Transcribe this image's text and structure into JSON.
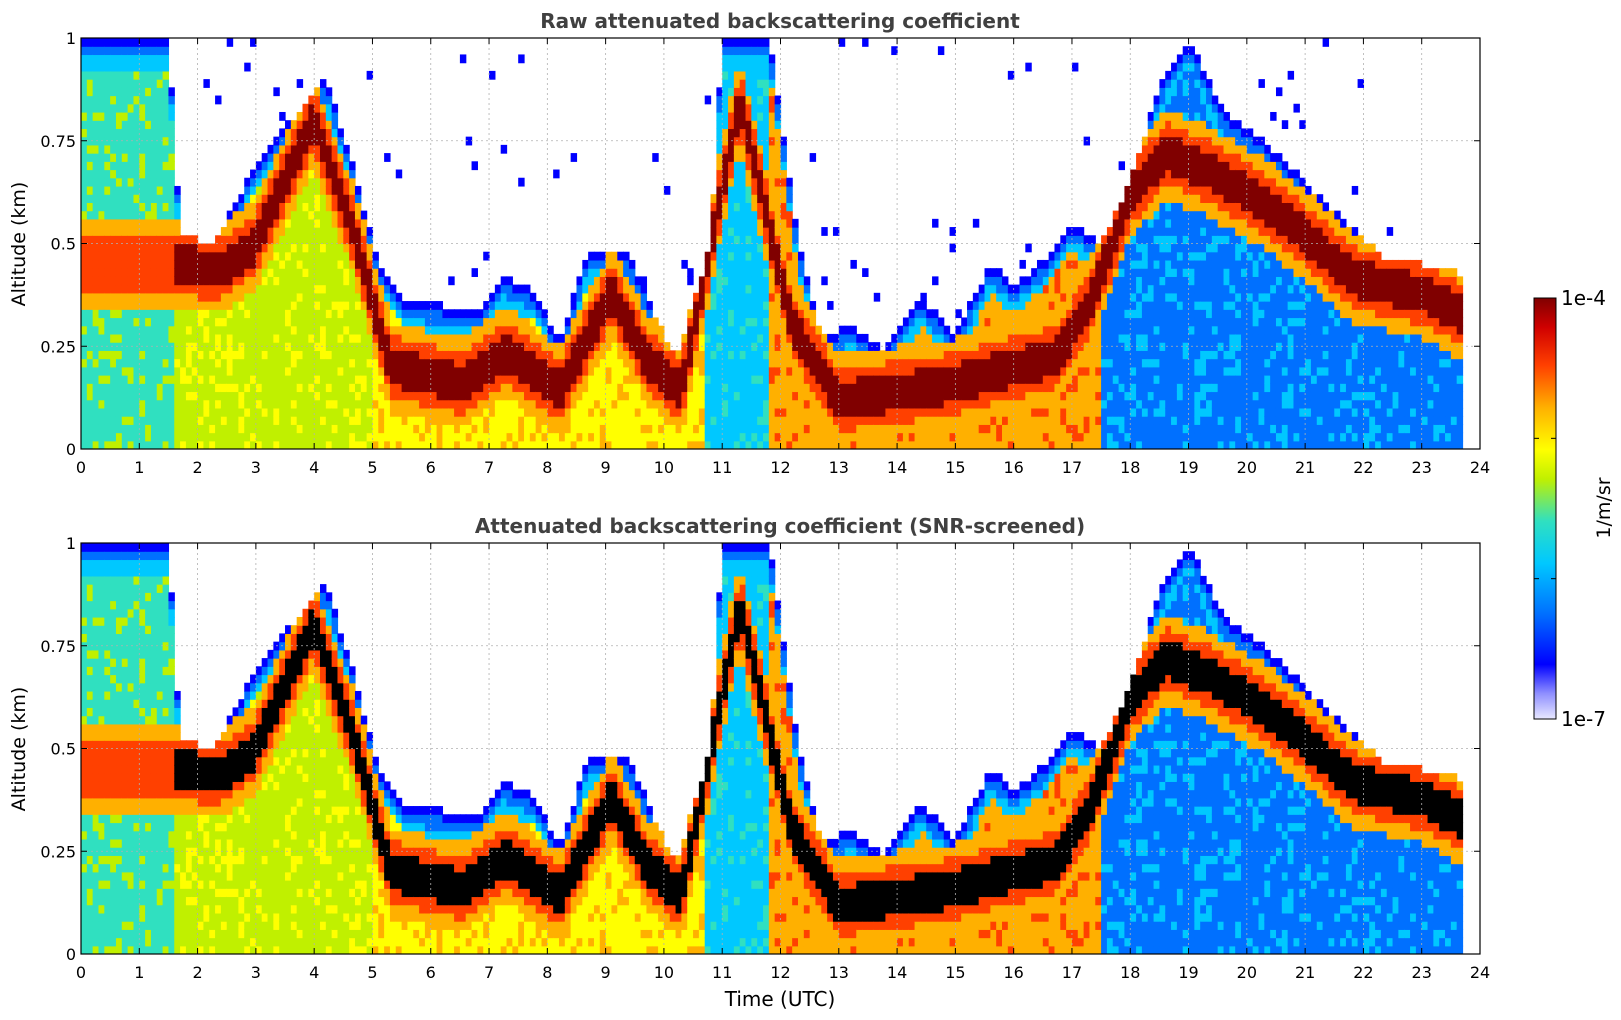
{
  "chart_data": [
    {
      "type": "heatmap",
      "title": "Raw attenuated backscattering coefficient",
      "xlabel": "",
      "ylabel": "Altitude (km)",
      "xlim": [
        0,
        24
      ],
      "ylim": [
        0,
        1
      ],
      "x_ticks": [
        "0",
        "1",
        "2",
        "3",
        "4",
        "5",
        "6",
        "7",
        "8",
        "9",
        "10",
        "11",
        "12",
        "13",
        "14",
        "15",
        "16",
        "17",
        "18",
        "19",
        "20",
        "21",
        "22",
        "23",
        "24"
      ],
      "y_ticks": [
        "0",
        "0.25",
        "0.5",
        "0.75",
        "1"
      ],
      "grid": true,
      "data_end_time": 23.65,
      "boundary_layer_top_km": [
        [
          0,
          1
        ],
        [
          1.5,
          1
        ],
        [
          1.7,
          0.52
        ],
        [
          2.3,
          0.5
        ],
        [
          3,
          0.7
        ],
        [
          4.2,
          0.9
        ],
        [
          4.6,
          0.72
        ],
        [
          5.1,
          0.45
        ],
        [
          5.6,
          0.36
        ],
        [
          6.2,
          0.35
        ],
        [
          6.8,
          0.34
        ],
        [
          7.2,
          0.42
        ],
        [
          7.8,
          0.38
        ],
        [
          8.2,
          0.26
        ],
        [
          8.7,
          0.48
        ],
        [
          9.4,
          0.47
        ],
        [
          10.2,
          0.22
        ],
        [
          10.8,
          0.5
        ],
        [
          11,
          1
        ],
        [
          11.8,
          1
        ],
        [
          12.3,
          0.5
        ],
        [
          12.7,
          0.28
        ],
        [
          13.2,
          0.3
        ],
        [
          13.8,
          0.24
        ],
        [
          14.4,
          0.37
        ],
        [
          15,
          0.28
        ],
        [
          15.6,
          0.45
        ],
        [
          16,
          0.4
        ],
        [
          16.5,
          0.46
        ],
        [
          17,
          0.55
        ],
        [
          17.5,
          0.5
        ],
        [
          18,
          0.65
        ],
        [
          18.5,
          0.88
        ],
        [
          19,
          1
        ],
        [
          19.6,
          0.82
        ],
        [
          20.2,
          0.76
        ],
        [
          21,
          0.65
        ],
        [
          21.6,
          0.57
        ],
        [
          22.3,
          0.47
        ],
        [
          23,
          0.45
        ],
        [
          23.65,
          0.43
        ]
      ],
      "cloud_layer_km": [
        [
          1.6,
          0.45
        ],
        [
          2.4,
          0.44
        ],
        [
          3,
          0.5
        ],
        [
          4,
          0.8
        ],
        [
          4.7,
          0.52
        ],
        [
          5.3,
          0.2
        ],
        [
          6.5,
          0.16
        ],
        [
          7.3,
          0.24
        ],
        [
          8.2,
          0.14
        ],
        [
          9.1,
          0.38
        ],
        [
          9.7,
          0.22
        ],
        [
          10.3,
          0.14
        ],
        [
          11.3,
          0.85
        ],
        [
          12.2,
          0.3
        ],
        [
          13,
          0.12
        ],
        [
          14,
          0.14
        ],
        [
          15,
          0.16
        ],
        [
          16,
          0.2
        ],
        [
          16.7,
          0.22
        ],
        [
          17.3,
          0.35
        ],
        [
          18,
          0.62
        ],
        [
          18.6,
          0.72
        ],
        [
          19.3,
          0.68
        ],
        [
          20.3,
          0.6
        ],
        [
          21,
          0.52
        ],
        [
          21.8,
          0.42
        ],
        [
          23,
          0.38
        ],
        [
          23.65,
          0.33
        ]
      ]
    },
    {
      "type": "heatmap",
      "title": "Attenuated backscattering coefficient (SNR-screened)",
      "xlabel": "Time (UTC)",
      "ylabel": "Altitude (km)",
      "xlim": [
        0,
        24
      ],
      "ylim": [
        0,
        1
      ],
      "x_ticks": [
        "0",
        "1",
        "2",
        "3",
        "4",
        "5",
        "6",
        "7",
        "8",
        "9",
        "10",
        "11",
        "12",
        "13",
        "14",
        "15",
        "16",
        "17",
        "18",
        "19",
        "20",
        "21",
        "22",
        "23",
        "24"
      ],
      "y_ticks": [
        "0",
        "0.25",
        "0.5",
        "0.75",
        "1"
      ],
      "grid": true,
      "data_end_time": 23.65
    }
  ],
  "colorbar": {
    "label": "1/m/sr",
    "max_label": "1e-4",
    "min_label": "1e-7",
    "scale": "log",
    "range": [
      1e-07,
      0.0001
    ],
    "colormap": [
      "#e8e8ff",
      "#9090ff",
      "#0000ff",
      "#0070ff",
      "#00c8ff",
      "#30e0c0",
      "#c0f000",
      "#ffff00",
      "#ffb000",
      "#ff4000",
      "#d00000",
      "#800000"
    ],
    "saturated_color_screened": "#000000"
  }
}
